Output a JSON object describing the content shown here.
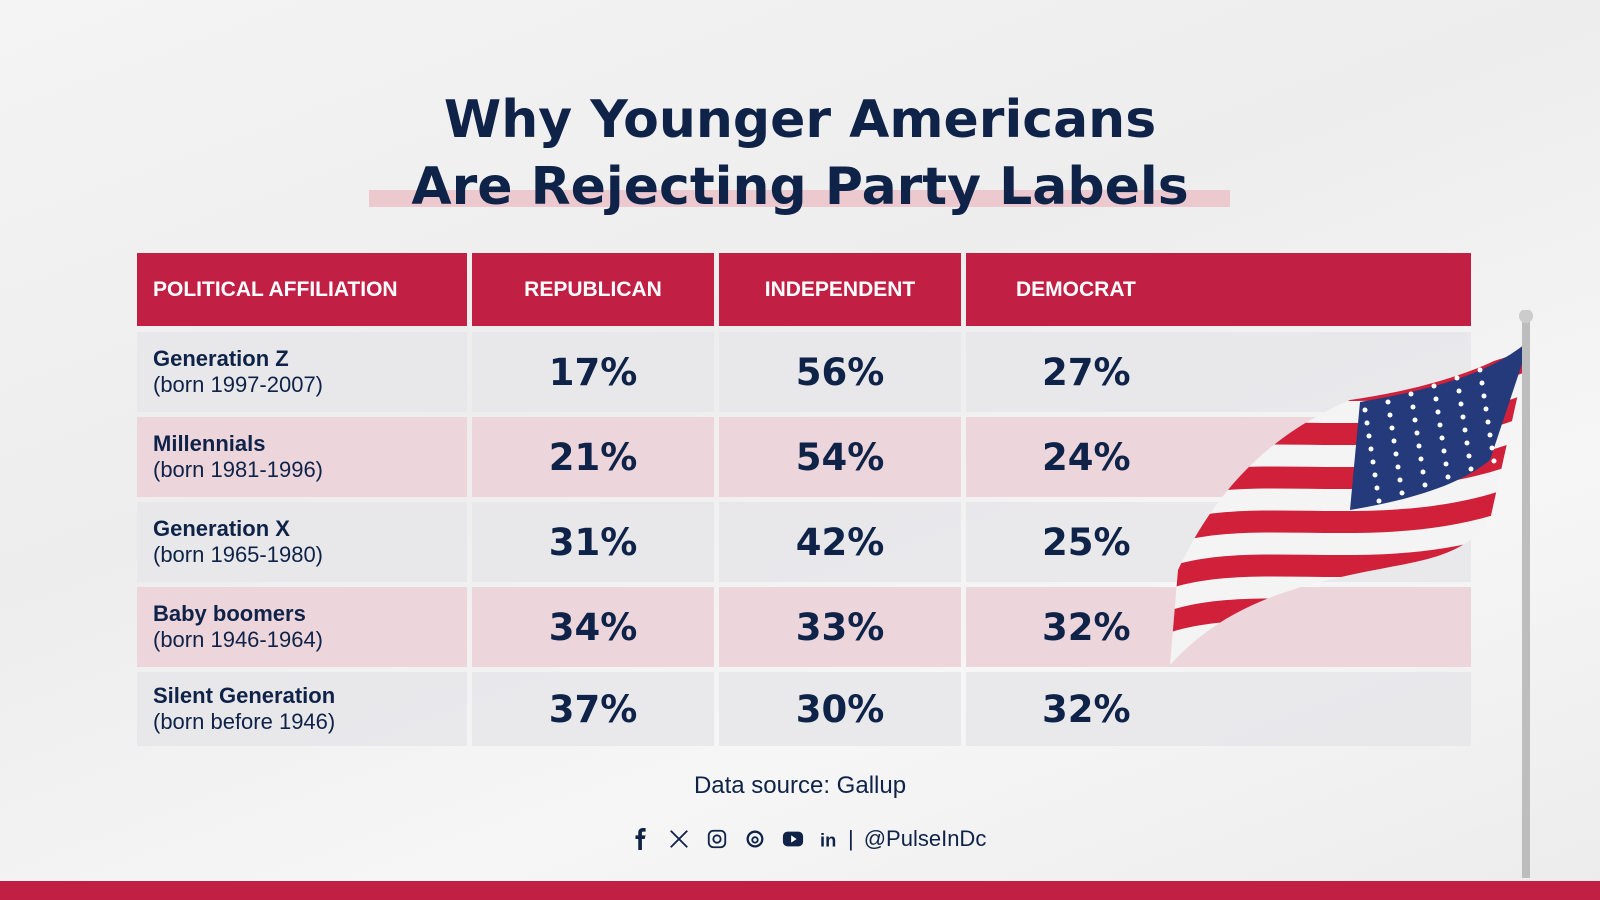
{
  "title": {
    "line1": "Why Younger Americans",
    "line2": "Are Rejecting Party Labels"
  },
  "table": {
    "headers": [
      "POLITICAL AFFILIATION",
      "REPUBLICAN",
      "INDEPENDENT",
      "DEMOCRAT"
    ],
    "rows": [
      {
        "name": "Generation Z",
        "born": "(born 1997-2007)",
        "republican": "17%",
        "independent": "56%",
        "democrat": "27%"
      },
      {
        "name": "Millennials",
        "born": "(born 1981-1996)",
        "republican": "21%",
        "independent": "54%",
        "democrat": "24%"
      },
      {
        "name": "Generation X",
        "born": "(born 1965-1980)",
        "republican": "31%",
        "independent": "42%",
        "democrat": "25%"
      },
      {
        "name": "Baby boomers",
        "born": "(born 1946-1964)",
        "republican": "34%",
        "independent": "33%",
        "democrat": "32%"
      },
      {
        "name": "Silent Generation",
        "born": "(born before 1946)",
        "republican": "37%",
        "independent": "30%",
        "democrat": "32%"
      }
    ]
  },
  "source": "Data source: Gallup",
  "social": {
    "icons": [
      "facebook-icon",
      "x-icon",
      "instagram-icon",
      "threads-icon",
      "youtube-icon",
      "linkedin-icon"
    ],
    "separator": "|",
    "handle": "@PulseInDc"
  },
  "colors": {
    "accent": "#c21f44",
    "navy": "#0f2248",
    "row_pink": "#ecd2d9",
    "row_gray": "#e6e6ea"
  }
}
